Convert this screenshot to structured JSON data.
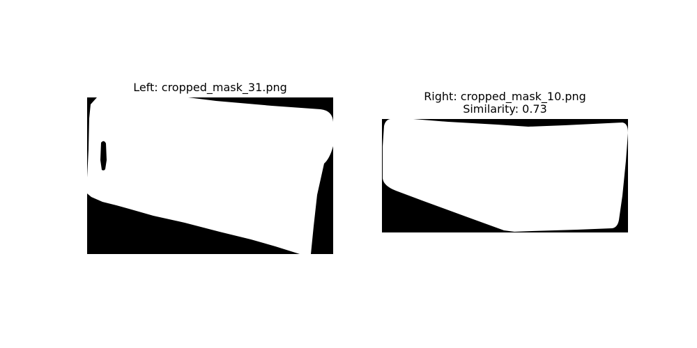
{
  "figure": {
    "left": {
      "title": "Left: cropped_mask_31.png",
      "image": "cropped_mask_31.png",
      "mask_colors": {
        "background": "#000000",
        "foreground": "#ffffff"
      }
    },
    "right": {
      "title_line1": "Right: cropped_mask_10.png",
      "title_line2": "Similarity: 0.73",
      "image": "cropped_mask_10.png",
      "similarity": 0.73,
      "mask_colors": {
        "background": "#000000",
        "foreground": "#ffffff"
      }
    }
  }
}
